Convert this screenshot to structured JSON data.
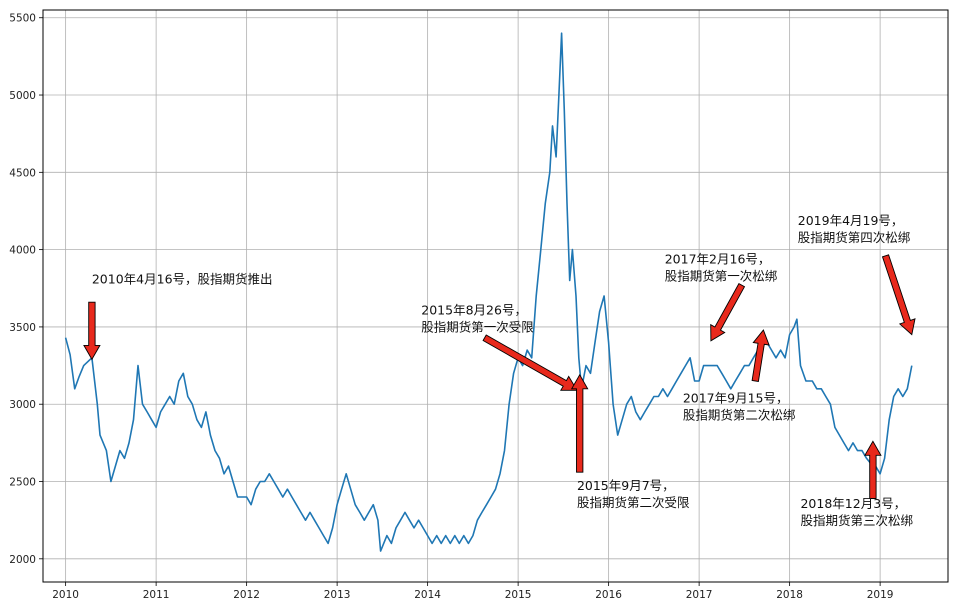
{
  "chart_data": {
    "type": "line",
    "title": "",
    "xlabel": "",
    "ylabel": "",
    "grid": true,
    "xlim": [
      2009.75,
      2019.75
    ],
    "ylim": [
      1850,
      5550
    ],
    "x_ticks": [
      2010,
      2011,
      2012,
      2013,
      2014,
      2015,
      2016,
      2017,
      2018,
      2019
    ],
    "x_tick_labels": [
      "2010",
      "2011",
      "2012",
      "2013",
      "2014",
      "2015",
      "2016",
      "2017",
      "2018",
      "2019"
    ],
    "y_ticks": [
      2000,
      2500,
      3000,
      3500,
      4000,
      4500,
      5000,
      5500
    ],
    "y_tick_labels": [
      "2000",
      "2500",
      "3000",
      "3500",
      "4000",
      "4500",
      "5000",
      "5500"
    ],
    "line_color": "#1f77b4",
    "arrow_color": "#e8291c",
    "series": [
      {
        "name": "",
        "points": [
          [
            2010.0,
            3430
          ],
          [
            2010.05,
            3320
          ],
          [
            2010.1,
            3100
          ],
          [
            2010.15,
            3180
          ],
          [
            2010.2,
            3250
          ],
          [
            2010.29,
            3300
          ],
          [
            2010.35,
            3000
          ],
          [
            2010.38,
            2800
          ],
          [
            2010.45,
            2700
          ],
          [
            2010.5,
            2500
          ],
          [
            2010.55,
            2600
          ],
          [
            2010.6,
            2700
          ],
          [
            2010.65,
            2650
          ],
          [
            2010.7,
            2750
          ],
          [
            2010.75,
            2900
          ],
          [
            2010.8,
            3250
          ],
          [
            2010.85,
            3000
          ],
          [
            2010.9,
            2950
          ],
          [
            2010.95,
            2900
          ],
          [
            2011.0,
            2850
          ],
          [
            2011.05,
            2950
          ],
          [
            2011.1,
            3000
          ],
          [
            2011.15,
            3050
          ],
          [
            2011.2,
            3000
          ],
          [
            2011.25,
            3150
          ],
          [
            2011.3,
            3200
          ],
          [
            2011.35,
            3050
          ],
          [
            2011.4,
            3000
          ],
          [
            2011.45,
            2900
          ],
          [
            2011.5,
            2850
          ],
          [
            2011.55,
            2950
          ],
          [
            2011.6,
            2800
          ],
          [
            2011.65,
            2700
          ],
          [
            2011.7,
            2650
          ],
          [
            2011.75,
            2550
          ],
          [
            2011.8,
            2600
          ],
          [
            2011.85,
            2500
          ],
          [
            2011.9,
            2400
          ],
          [
            2012.0,
            2400
          ],
          [
            2012.05,
            2350
          ],
          [
            2012.1,
            2450
          ],
          [
            2012.15,
            2500
          ],
          [
            2012.2,
            2500
          ],
          [
            2012.25,
            2550
          ],
          [
            2012.3,
            2500
          ],
          [
            2012.35,
            2450
          ],
          [
            2012.4,
            2400
          ],
          [
            2012.45,
            2450
          ],
          [
            2012.5,
            2400
          ],
          [
            2012.55,
            2350
          ],
          [
            2012.6,
            2300
          ],
          [
            2012.65,
            2250
          ],
          [
            2012.7,
            2300
          ],
          [
            2012.75,
            2250
          ],
          [
            2012.8,
            2200
          ],
          [
            2012.85,
            2150
          ],
          [
            2012.9,
            2100
          ],
          [
            2012.95,
            2200
          ],
          [
            2013.0,
            2350
          ],
          [
            2013.05,
            2450
          ],
          [
            2013.1,
            2550
          ],
          [
            2013.15,
            2450
          ],
          [
            2013.2,
            2350
          ],
          [
            2013.25,
            2300
          ],
          [
            2013.3,
            2250
          ],
          [
            2013.35,
            2300
          ],
          [
            2013.4,
            2350
          ],
          [
            2013.45,
            2250
          ],
          [
            2013.48,
            2050
          ],
          [
            2013.55,
            2150
          ],
          [
            2013.6,
            2100
          ],
          [
            2013.65,
            2200
          ],
          [
            2013.7,
            2250
          ],
          [
            2013.75,
            2300
          ],
          [
            2013.8,
            2250
          ],
          [
            2013.85,
            2200
          ],
          [
            2013.9,
            2250
          ],
          [
            2013.95,
            2200
          ],
          [
            2014.0,
            2150
          ],
          [
            2014.05,
            2100
          ],
          [
            2014.1,
            2150
          ],
          [
            2014.15,
            2100
          ],
          [
            2014.2,
            2150
          ],
          [
            2014.25,
            2100
          ],
          [
            2014.3,
            2150
          ],
          [
            2014.35,
            2100
          ],
          [
            2014.4,
            2150
          ],
          [
            2014.45,
            2100
          ],
          [
            2014.5,
            2150
          ],
          [
            2014.55,
            2250
          ],
          [
            2014.6,
            2300
          ],
          [
            2014.65,
            2350
          ],
          [
            2014.7,
            2400
          ],
          [
            2014.75,
            2450
          ],
          [
            2014.8,
            2550
          ],
          [
            2014.85,
            2700
          ],
          [
            2014.9,
            3000
          ],
          [
            2014.95,
            3200
          ],
          [
            2015.0,
            3300
          ],
          [
            2015.05,
            3250
          ],
          [
            2015.1,
            3350
          ],
          [
            2015.15,
            3300
          ],
          [
            2015.2,
            3700
          ],
          [
            2015.25,
            4000
          ],
          [
            2015.3,
            4300
          ],
          [
            2015.35,
            4500
          ],
          [
            2015.38,
            4800
          ],
          [
            2015.42,
            4600
          ],
          [
            2015.45,
            5000
          ],
          [
            2015.48,
            5400
          ],
          [
            2015.51,
            4900
          ],
          [
            2015.54,
            4300
          ],
          [
            2015.57,
            3800
          ],
          [
            2015.6,
            4000
          ],
          [
            2015.64,
            3700
          ],
          [
            2015.67,
            3300
          ],
          [
            2015.7,
            3100
          ],
          [
            2015.75,
            3250
          ],
          [
            2015.8,
            3200
          ],
          [
            2015.85,
            3400
          ],
          [
            2015.9,
            3600
          ],
          [
            2015.95,
            3700
          ],
          [
            2016.0,
            3400
          ],
          [
            2016.05,
            3000
          ],
          [
            2016.1,
            2800
          ],
          [
            2016.15,
            2900
          ],
          [
            2016.2,
            3000
          ],
          [
            2016.25,
            3050
          ],
          [
            2016.3,
            2950
          ],
          [
            2016.35,
            2900
          ],
          [
            2016.4,
            2950
          ],
          [
            2016.45,
            3000
          ],
          [
            2016.5,
            3050
          ],
          [
            2016.55,
            3050
          ],
          [
            2016.6,
            3100
          ],
          [
            2016.65,
            3050
          ],
          [
            2016.7,
            3100
          ],
          [
            2016.75,
            3150
          ],
          [
            2016.8,
            3200
          ],
          [
            2016.85,
            3250
          ],
          [
            2016.9,
            3300
          ],
          [
            2016.95,
            3150
          ],
          [
            2017.0,
            3150
          ],
          [
            2017.05,
            3250
          ],
          [
            2017.13,
            3250
          ],
          [
            2017.2,
            3250
          ],
          [
            2017.25,
            3200
          ],
          [
            2017.3,
            3150
          ],
          [
            2017.35,
            3100
          ],
          [
            2017.4,
            3150
          ],
          [
            2017.45,
            3200
          ],
          [
            2017.5,
            3250
          ],
          [
            2017.55,
            3250
          ],
          [
            2017.6,
            3300
          ],
          [
            2017.65,
            3350
          ],
          [
            2017.7,
            3380
          ],
          [
            2017.75,
            3400
          ],
          [
            2017.8,
            3350
          ],
          [
            2017.85,
            3300
          ],
          [
            2017.9,
            3350
          ],
          [
            2017.95,
            3300
          ],
          [
            2018.0,
            3450
          ],
          [
            2018.05,
            3500
          ],
          [
            2018.08,
            3550
          ],
          [
            2018.12,
            3250
          ],
          [
            2018.18,
            3150
          ],
          [
            2018.25,
            3150
          ],
          [
            2018.3,
            3100
          ],
          [
            2018.35,
            3100
          ],
          [
            2018.4,
            3050
          ],
          [
            2018.45,
            3000
          ],
          [
            2018.5,
            2850
          ],
          [
            2018.55,
            2800
          ],
          [
            2018.6,
            2750
          ],
          [
            2018.65,
            2700
          ],
          [
            2018.7,
            2750
          ],
          [
            2018.75,
            2700
          ],
          [
            2018.8,
            2700
          ],
          [
            2018.85,
            2650
          ],
          [
            2018.92,
            2600
          ],
          [
            2018.95,
            2600
          ],
          [
            2019.0,
            2550
          ],
          [
            2019.05,
            2650
          ],
          [
            2019.1,
            2900
          ],
          [
            2019.15,
            3050
          ],
          [
            2019.2,
            3100
          ],
          [
            2019.25,
            3050
          ],
          [
            2019.3,
            3100
          ],
          [
            2019.35,
            3250
          ]
        ]
      }
    ],
    "annotations": [
      {
        "text_lines": [
          "2010年4月16号，股指期货推出"
        ],
        "text_xy": [
          2010.29,
          3780
        ],
        "arrow_tip": [
          2010.29,
          3290
        ]
      },
      {
        "text_lines": [
          "2015年8月26号，",
          "股指期货第一次受限"
        ],
        "text_xy": [
          2013.93,
          3580
        ],
        "arrow_tail": [
          2014.63,
          3430
        ],
        "arrow_tip": [
          2015.65,
          3090
        ]
      },
      {
        "text_lines": [
          "2015年9月7号，",
          "股指期货第二次受限"
        ],
        "text_xy": [
          2015.65,
          2445
        ],
        "arrow_tail": [
          2015.68,
          2560
        ],
        "arrow_tip": [
          2015.68,
          3190
        ]
      },
      {
        "text_lines": [
          "2017年2月16号，",
          "股指期货第一次松绑"
        ],
        "text_xy": [
          2016.62,
          3910
        ],
        "arrow_tail": [
          2017.47,
          3770
        ],
        "arrow_tip": [
          2017.13,
          3410
        ]
      },
      {
        "text_lines": [
          "2017年9月15号，",
          "股指期货第二次松绑"
        ],
        "text_xy": [
          2016.82,
          3010
        ],
        "arrow_tail": [
          2017.62,
          3150
        ],
        "arrow_tip": [
          2017.71,
          3480
        ]
      },
      {
        "text_lines": [
          "2018年12月3号，",
          "股指期货第三次松绑"
        ],
        "text_xy": [
          2018.12,
          2330
        ],
        "arrow_tail": [
          2018.92,
          2390
        ],
        "arrow_tip": [
          2018.92,
          2760
        ]
      },
      {
        "text_lines": [
          "2019年4月19号，",
          "股指期货第四次松绑"
        ],
        "text_xy": [
          2018.09,
          4160
        ],
        "arrow_tail": [
          2019.06,
          3960
        ],
        "arrow_tip": [
          2019.35,
          3450
        ]
      }
    ]
  }
}
